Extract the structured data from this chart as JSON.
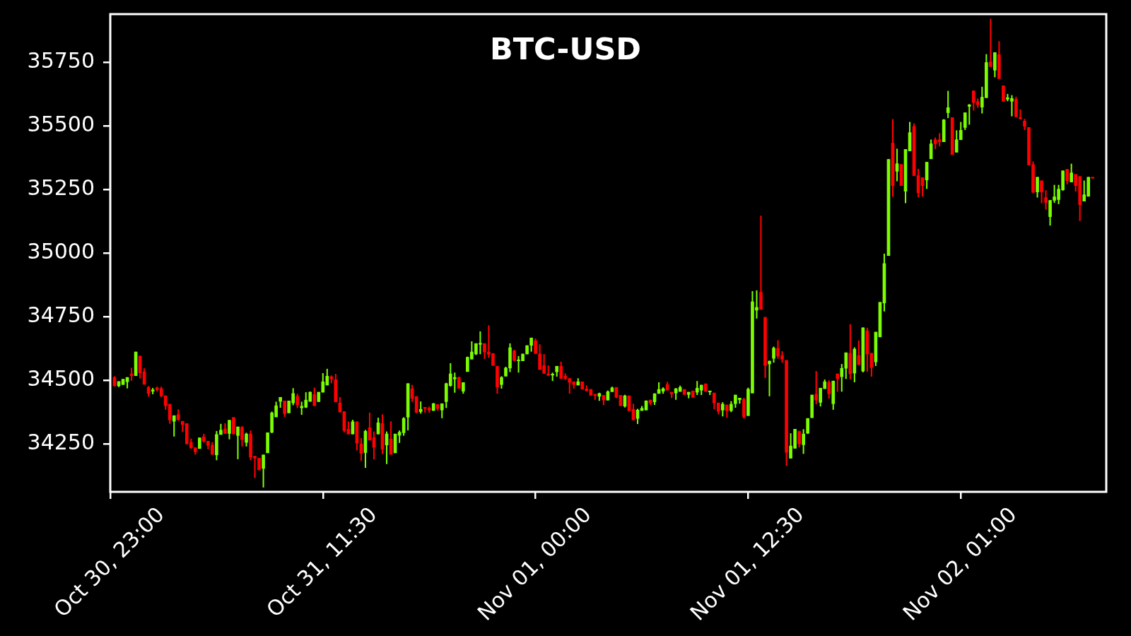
{
  "chart_data": {
    "type": "candlestick",
    "title": "BTC-USD",
    "x": [
      "--10-30T23:15",
      "--10-30T23:30",
      "--10-30T23:45",
      "--10-31T00:00",
      "--10-31T00:15",
      "--10-31T00:30",
      "--10-31T00:45",
      "--10-31T01:00",
      "--10-31T01:15",
      "--10-31T01:30",
      "--10-31T01:45",
      "--10-31T02:00",
      "--10-31T02:15",
      "--10-31T02:30",
      "--10-31T02:45",
      "--10-31T03:00",
      "--10-31T03:15",
      "--10-31T03:30",
      "--10-31T03:45",
      "--10-31T04:00",
      "--10-31T04:15",
      "--10-31T04:30",
      "--10-31T04:45",
      "--10-31T05:00",
      "--10-31T05:15",
      "--10-31T05:30",
      "--10-31T05:45",
      "--10-31T06:00",
      "--10-31T06:15",
      "--10-31T06:30",
      "--10-31T06:45",
      "--10-31T07:00",
      "--10-31T07:15",
      "--10-31T07:30",
      "--10-31T07:45",
      "--10-31T08:00",
      "--10-31T08:15",
      "--10-31T08:30",
      "--10-31T08:45",
      "--10-31T09:00",
      "--10-31T09:15",
      "--10-31T09:30",
      "--10-31T09:45",
      "--10-31T10:00",
      "--10-31T10:15",
      "--10-31T10:30",
      "--10-31T10:45",
      "--10-31T11:00",
      "--10-31T11:15",
      "--10-31T11:30",
      "--10-31T11:45",
      "--10-31T12:00",
      "--10-31T12:15",
      "--10-31T12:30",
      "--10-31T12:45",
      "--10-31T13:00",
      "--10-31T13:15",
      "--10-31T13:30",
      "--10-31T13:45",
      "--10-31T14:00",
      "--10-31T14:15",
      "--10-31T14:30",
      "--10-31T14:45",
      "--10-31T15:00",
      "--10-31T15:15",
      "--10-31T15:30",
      "--10-31T15:45",
      "--10-31T16:00",
      "--10-31T16:15",
      "--10-31T16:30",
      "--10-31T16:45",
      "--10-31T17:00",
      "--10-31T17:15",
      "--10-31T17:30",
      "--10-31T17:45",
      "--10-31T18:00",
      "--10-31T18:15",
      "--10-31T18:30",
      "--10-31T18:45",
      "--10-31T19:00",
      "--10-31T19:15",
      "--10-31T19:30",
      "--10-31T19:45",
      "--10-31T20:00",
      "--10-31T20:15",
      "--10-31T20:30",
      "--10-31T20:45",
      "--10-31T21:00",
      "--10-31T21:15",
      "--10-31T21:30",
      "--10-31T21:45",
      "--10-31T22:00",
      "--10-31T22:15",
      "--10-31T22:30",
      "--10-31T22:45",
      "--10-31T23:00",
      "--10-31T23:15",
      "--10-31T23:30",
      "--10-31T23:45",
      "--11-01T00:00",
      "--11-01T00:15",
      "--11-01T00:30",
      "--11-01T00:45",
      "--11-01T01:00",
      "--11-01T01:15",
      "--11-01T01:30",
      "--11-01T01:45",
      "--11-01T02:00",
      "--11-01T02:15",
      "--11-01T02:30",
      "--11-01T02:45",
      "--11-01T03:00",
      "--11-01T03:15",
      "--11-01T03:30",
      "--11-01T03:45",
      "--11-01T04:00",
      "--11-01T04:15",
      "--11-01T04:30",
      "--11-01T04:45",
      "--11-01T05:00",
      "--11-01T05:15",
      "--11-01T05:30",
      "--11-01T05:45",
      "--11-01T06:00",
      "--11-01T06:15",
      "--11-01T06:30",
      "--11-01T06:45",
      "--11-01T07:00",
      "--11-01T07:15",
      "--11-01T07:30",
      "--11-01T07:45",
      "--11-01T08:00",
      "--11-01T08:15",
      "--11-01T08:30",
      "--11-01T08:45",
      "--11-01T09:00",
      "--11-01T09:15",
      "--11-01T09:30",
      "--11-01T09:45",
      "--11-01T10:00",
      "--11-01T10:15",
      "--11-01T10:30",
      "--11-01T10:45",
      "--11-01T11:00",
      "--11-01T11:15",
      "--11-01T11:30",
      "--11-01T11:45",
      "--11-01T12:00",
      "--11-01T12:15",
      "--11-01T12:30",
      "--11-01T12:45",
      "--11-01T13:00",
      "--11-01T13:15",
      "--11-01T13:30",
      "--11-01T13:45",
      "--11-01T14:00",
      "--11-01T14:15",
      "--11-01T14:30",
      "--11-01T14:45",
      "--11-01T15:00",
      "--11-01T15:15",
      "--11-01T15:30",
      "--11-01T15:45",
      "--11-01T16:00",
      "--11-01T16:15",
      "--11-01T16:30",
      "--11-01T16:45",
      "--11-01T17:00",
      "--11-01T17:15",
      "--11-01T17:30",
      "--11-01T17:45",
      "--11-01T18:00",
      "--11-01T18:15",
      "--11-01T18:30",
      "--11-01T18:45",
      "--11-01T19:00",
      "--11-01T19:15",
      "--11-01T19:30",
      "--11-01T19:45",
      "--11-01T20:00",
      "--11-01T20:15",
      "--11-01T20:30",
      "--11-01T20:45",
      "--11-01T21:00",
      "--11-01T21:15",
      "--11-01T21:30",
      "--11-01T21:45",
      "--11-01T22:00",
      "--11-01T22:15",
      "--11-01T22:30",
      "--11-01T22:45",
      "--11-01T23:00",
      "--11-01T23:15",
      "--11-01T23:30",
      "--11-01T23:45",
      "--11-02T00:00",
      "--11-02T00:15",
      "--11-02T00:30",
      "--11-02T00:45",
      "--11-02T01:00",
      "--11-02T01:15",
      "--11-02T01:30",
      "--11-02T01:45",
      "--11-02T02:00",
      "--11-02T02:15",
      "--11-02T02:30",
      "--11-02T02:45",
      "--11-02T03:00",
      "--11-02T03:15",
      "--11-02T03:30",
      "--11-02T03:45",
      "--11-02T04:00",
      "--11-02T04:15",
      "--11-02T04:30",
      "--11-02T04:45",
      "--11-02T05:00",
      "--11-02T05:15",
      "--11-02T05:30",
      "--11-02T05:45",
      "--11-02T06:00",
      "--11-02T06:15",
      "--11-02T06:30",
      "--11-02T06:45",
      "--11-02T07:00",
      "--11-02T07:15",
      "--11-02T07:30",
      "--11-02T07:45",
      "--11-02T08:00",
      "--11-02T08:15",
      "--11-02T08:30",
      "--11-02T08:45"
    ],
    "ohlc": [
      [
        34512,
        34516,
        34478,
        34479
      ],
      [
        34479,
        34496,
        34475,
        34496
      ],
      [
        34484,
        34505,
        34484,
        34505
      ],
      [
        34495,
        34512,
        34470,
        34512
      ],
      [
        34526,
        34549,
        34500,
        34519
      ],
      [
        34519,
        34612,
        34519,
        34612
      ],
      [
        34596,
        34596,
        34509,
        34530
      ],
      [
        34534,
        34547,
        34485,
        34485
      ],
      [
        34473,
        34477,
        34438,
        34449
      ],
      [
        34458,
        34470,
        34447,
        34463
      ],
      [
        34471,
        34475,
        34458,
        34464
      ],
      [
        34468,
        34475,
        34435,
        34440
      ],
      [
        34440,
        34440,
        34386,
        34401
      ],
      [
        34407,
        34407,
        34331,
        34345
      ],
      [
        34340,
        34362,
        34281,
        34362
      ],
      [
        34366,
        34386,
        34342,
        34347
      ],
      [
        34340,
        34340,
        34299,
        34327
      ],
      [
        34331,
        34331,
        34251,
        34251
      ],
      [
        34257,
        34271,
        34233,
        34236
      ],
      [
        34236,
        34236,
        34210,
        34220
      ],
      [
        34233,
        34275,
        34233,
        34275
      ],
      [
        34279,
        34290,
        34257,
        34262
      ],
      [
        34262,
        34262,
        34231,
        34246
      ],
      [
        34246,
        34257,
        34210,
        34210
      ],
      [
        34208,
        34301,
        34188,
        34288
      ],
      [
        34288,
        34329,
        34288,
        34305
      ],
      [
        34310,
        34331,
        34292,
        34292
      ],
      [
        34292,
        34344,
        34270,
        34344
      ],
      [
        34355,
        34355,
        34290,
        34290
      ],
      [
        34284,
        34318,
        34192,
        34318
      ],
      [
        34316,
        34320,
        34242,
        34268
      ],
      [
        34257,
        34294,
        34242,
        34290
      ],
      [
        34290,
        34303,
        34188,
        34199
      ],
      [
        34203,
        34203,
        34118,
        34195
      ],
      [
        34195,
        34195,
        34149,
        34149
      ],
      [
        34155,
        34208,
        34081,
        34208
      ],
      [
        34216,
        34295,
        34216,
        34295
      ],
      [
        34297,
        34377,
        34294,
        34373
      ],
      [
        34357,
        34416,
        34357,
        34401
      ],
      [
        34418,
        34434,
        34394,
        34434
      ],
      [
        34420,
        34420,
        34358,
        34370
      ],
      [
        34373,
        34420,
        34373,
        34420
      ],
      [
        34412,
        34469,
        34404,
        34449
      ],
      [
        34438,
        34447,
        34393,
        34404
      ],
      [
        34393,
        34416,
        34366,
        34399
      ],
      [
        34395,
        34453,
        34393,
        34423
      ],
      [
        34418,
        34456,
        34418,
        34454
      ],
      [
        34445,
        34471,
        34401,
        34401
      ],
      [
        34417,
        34454,
        34417,
        34454
      ],
      [
        34454,
        34528,
        34454,
        34495
      ],
      [
        34482,
        34545,
        34482,
        34517
      ],
      [
        34515,
        34519,
        34490,
        34506
      ],
      [
        34503,
        34525,
        34416,
        34416
      ],
      [
        34412,
        34434,
        34375,
        34377
      ],
      [
        34378,
        34378,
        34297,
        34304
      ],
      [
        34309,
        34338,
        34290,
        34290
      ],
      [
        34290,
        34345,
        34290,
        34338
      ],
      [
        34338,
        34338,
        34227,
        34254
      ],
      [
        34251,
        34273,
        34186,
        34214
      ],
      [
        34217,
        34305,
        34158,
        34301
      ],
      [
        34315,
        34373,
        34266,
        34266
      ],
      [
        34276,
        34299,
        34191,
        34238
      ],
      [
        34290,
        34353,
        34290,
        34334
      ],
      [
        34331,
        34366,
        34212,
        34231
      ],
      [
        34247,
        34299,
        34173,
        34290
      ],
      [
        34270,
        34339,
        34210,
        34210
      ],
      [
        34216,
        34290,
        34216,
        34290
      ],
      [
        34285,
        34303,
        34256,
        34297
      ],
      [
        34295,
        34355,
        34284,
        34351
      ],
      [
        34356,
        34488,
        34305,
        34488
      ],
      [
        34467,
        34482,
        34417,
        34430
      ],
      [
        34437,
        34437,
        34373,
        34375
      ],
      [
        34378,
        34417,
        34371,
        34387
      ],
      [
        34395,
        34395,
        34375,
        34390
      ],
      [
        34391,
        34397,
        34375,
        34384
      ],
      [
        34382,
        34411,
        34382,
        34409
      ],
      [
        34406,
        34406,
        34382,
        34390
      ],
      [
        34384,
        34409,
        34353,
        34409
      ],
      [
        34417,
        34490,
        34393,
        34488
      ],
      [
        34480,
        34567,
        34477,
        34526
      ],
      [
        34506,
        34530,
        34453,
        34512
      ],
      [
        34512,
        34514,
        34469,
        34469
      ],
      [
        34458,
        34492,
        34449,
        34492
      ],
      [
        34535,
        34593,
        34535,
        34591
      ],
      [
        34584,
        34653,
        34584,
        34612
      ],
      [
        34604,
        34645,
        34601,
        34645
      ],
      [
        34642,
        34692,
        34604,
        34646
      ],
      [
        34645,
        34645,
        34586,
        34612
      ],
      [
        34612,
        34716,
        34590,
        34603
      ],
      [
        34606,
        34606,
        34559,
        34559
      ],
      [
        34556,
        34556,
        34449,
        34474
      ],
      [
        34484,
        34516,
        34469,
        34512
      ],
      [
        34517,
        34553,
        34517,
        34549
      ],
      [
        34549,
        34645,
        34534,
        34629
      ],
      [
        34616,
        34620,
        34577,
        34579
      ],
      [
        34577,
        34595,
        34532,
        34580
      ],
      [
        34577,
        34604,
        34577,
        34604
      ],
      [
        34604,
        34637,
        34604,
        34637
      ],
      [
        34638,
        34667,
        34614,
        34667
      ],
      [
        34656,
        34664,
        34606,
        34606
      ],
      [
        34604,
        34641,
        34543,
        34543
      ],
      [
        34559,
        34603,
        34528,
        34528
      ],
      [
        34526,
        34558,
        34520,
        34520
      ],
      [
        34521,
        34530,
        34499,
        34525
      ],
      [
        34534,
        34556,
        34516,
        34556
      ],
      [
        34556,
        34573,
        34508,
        34508
      ],
      [
        34517,
        34527,
        34503,
        34508
      ],
      [
        34508,
        34508,
        34449,
        34493
      ],
      [
        34495,
        34495,
        34469,
        34484
      ],
      [
        34482,
        34508,
        34482,
        34495
      ],
      [
        34495,
        34495,
        34466,
        34466
      ],
      [
        34467,
        34480,
        34458,
        34460
      ],
      [
        34465,
        34465,
        34442,
        34442
      ],
      [
        34446,
        34446,
        34425,
        34441
      ],
      [
        34438,
        34451,
        34421,
        34449
      ],
      [
        34442,
        34442,
        34404,
        34423
      ],
      [
        34423,
        34460,
        34423,
        34456
      ],
      [
        34456,
        34475,
        34456,
        34471
      ],
      [
        34473,
        34473,
        34432,
        34434
      ],
      [
        34442,
        34442,
        34401,
        34401
      ],
      [
        34399,
        34443,
        34395,
        34440
      ],
      [
        34440,
        34440,
        34381,
        34381
      ],
      [
        34387,
        34408,
        34345,
        34345
      ],
      [
        34351,
        34388,
        34330,
        34384
      ],
      [
        34382,
        34399,
        34382,
        34391
      ],
      [
        34384,
        34421,
        34384,
        34420
      ],
      [
        34423,
        34424,
        34405,
        34412
      ],
      [
        34416,
        34449,
        34405,
        34448
      ],
      [
        34449,
        34492,
        34449,
        34465
      ],
      [
        34458,
        34472,
        34449,
        34468
      ],
      [
        34484,
        34494,
        34462,
        34462
      ],
      [
        34454,
        34454,
        34432,
        34447
      ],
      [
        34451,
        34469,
        34425,
        34468
      ],
      [
        34457,
        34479,
        34457,
        34473
      ],
      [
        34465,
        34465,
        34445,
        34445
      ],
      [
        34445,
        34454,
        34431,
        34454
      ],
      [
        34459,
        34459,
        34434,
        34434
      ],
      [
        34454,
        34497,
        34444,
        34470
      ],
      [
        34462,
        34482,
        34444,
        34482
      ],
      [
        34487,
        34487,
        34457,
        34457
      ],
      [
        34455,
        34459,
        34444,
        34458
      ],
      [
        34451,
        34451,
        34388,
        34412
      ],
      [
        34412,
        34412,
        34368,
        34379
      ],
      [
        34384,
        34414,
        34360,
        34407
      ],
      [
        34404,
        34404,
        34355,
        34381
      ],
      [
        34382,
        34418,
        34377,
        34407
      ],
      [
        34409,
        34443,
        34394,
        34443
      ],
      [
        34425,
        34431,
        34410,
        34431
      ],
      [
        34426,
        34431,
        34351,
        34357
      ],
      [
        34362,
        34471,
        34362,
        34466
      ],
      [
        34451,
        34850,
        34451,
        34809
      ],
      [
        34776,
        34853,
        34744,
        34787
      ],
      [
        34846,
        35146,
        34779,
        34779
      ],
      [
        34748,
        34748,
        34511,
        34559
      ],
      [
        34565,
        34577,
        34439,
        34576
      ],
      [
        34587,
        34632,
        34571,
        34627
      ],
      [
        34626,
        34657,
        34586,
        34596
      ],
      [
        34598,
        34614,
        34571,
        34584
      ],
      [
        34579,
        34579,
        34166,
        34218
      ],
      [
        34195,
        34292,
        34195,
        34243
      ],
      [
        34234,
        34309,
        34234,
        34309
      ],
      [
        34301,
        34301,
        34238,
        34251
      ],
      [
        34248,
        34308,
        34213,
        34290
      ],
      [
        34293,
        34351,
        34291,
        34351
      ],
      [
        34354,
        34443,
        34354,
        34443
      ],
      [
        34446,
        34536,
        34408,
        34423
      ],
      [
        34414,
        34470,
        34399,
        34470
      ],
      [
        34468,
        34503,
        34468,
        34495
      ],
      [
        34493,
        34500,
        34430,
        34448
      ],
      [
        34409,
        34498,
        34386,
        34498
      ],
      [
        34526,
        34526,
        34457,
        34507
      ],
      [
        34515,
        34564,
        34457,
        34548
      ],
      [
        34548,
        34609,
        34507,
        34609
      ],
      [
        34607,
        34720,
        34505,
        34526
      ],
      [
        34529,
        34629,
        34494,
        34623
      ],
      [
        34598,
        34656,
        34562,
        34562
      ],
      [
        34537,
        34707,
        34533,
        34707
      ],
      [
        34695,
        34706,
        34535,
        34604
      ],
      [
        34607,
        34607,
        34516,
        34551
      ],
      [
        34573,
        34690,
        34558,
        34690
      ],
      [
        34671,
        34807,
        34671,
        34807
      ],
      [
        34804,
        34997,
        34772,
        34959
      ],
      [
        34990,
        35368,
        34990,
        35368
      ],
      [
        35432,
        35525,
        35222,
        35265
      ],
      [
        35321,
        35409,
        35283,
        35351
      ],
      [
        35348,
        35348,
        35265,
        35265
      ],
      [
        35243,
        35407,
        35197,
        35407
      ],
      [
        35401,
        35514,
        35401,
        35473
      ],
      [
        35497,
        35508,
        35304,
        35304
      ],
      [
        35304,
        35330,
        35220,
        35237
      ],
      [
        35296,
        35296,
        35223,
        35265
      ],
      [
        35287,
        35357,
        35253,
        35357
      ],
      [
        35370,
        35445,
        35370,
        35429
      ],
      [
        35445,
        35453,
        35409,
        35429
      ],
      [
        35445,
        35470,
        35420,
        35437
      ],
      [
        35437,
        35525,
        35437,
        35523
      ],
      [
        35551,
        35636,
        35531,
        35571
      ],
      [
        35532,
        35532,
        35387,
        35387
      ],
      [
        35396,
        35481,
        35396,
        35445
      ],
      [
        35445,
        35514,
        35445,
        35482
      ],
      [
        35493,
        35551,
        35484,
        35551
      ],
      [
        35576,
        35584,
        35505,
        35582
      ],
      [
        35637,
        35637,
        35561,
        35591
      ],
      [
        35595,
        35606,
        35571,
        35582
      ],
      [
        35573,
        35652,
        35549,
        35612
      ],
      [
        35610,
        35780,
        35610,
        35748
      ],
      [
        35751,
        35919,
        35732,
        35732
      ],
      [
        35718,
        35787,
        35691,
        35787
      ],
      [
        35779,
        35831,
        35685,
        35685
      ],
      [
        35657,
        35657,
        35596,
        35596
      ],
      [
        35604,
        35624,
        35597,
        35610
      ],
      [
        35596,
        35619,
        35538,
        35607
      ],
      [
        35604,
        35613,
        35535,
        35535
      ],
      [
        35532,
        35563,
        35527,
        35527
      ],
      [
        35518,
        35526,
        35484,
        35498
      ],
      [
        35493,
        35493,
        35346,
        35346
      ],
      [
        35348,
        35359,
        35236,
        35239
      ],
      [
        35240,
        35298,
        35219,
        35298
      ],
      [
        35284,
        35284,
        35197,
        35240
      ],
      [
        35218,
        35246,
        35172,
        35199
      ],
      [
        35143,
        35207,
        35109,
        35207
      ],
      [
        35207,
        35267,
        35198,
        35221
      ],
      [
        35210,
        35267,
        35193,
        35251
      ],
      [
        35248,
        35323,
        35246,
        35323
      ],
      [
        35329,
        35329,
        35271,
        35284
      ],
      [
        35279,
        35350,
        35279,
        35315
      ],
      [
        35309,
        35309,
        35243,
        35265
      ],
      [
        35301,
        35301,
        35127,
        35190
      ],
      [
        35204,
        35284,
        35204,
        35229
      ],
      [
        35223,
        35298,
        35223,
        35298
      ],
      [
        35296,
        35296,
        35294,
        35294
      ]
    ],
    "colors": [
      "#ff0000",
      "#7cfc00",
      "#7cfc00",
      "#7cfc00",
      "#ff0000",
      "#7cfc00",
      "#ff0000",
      "#ff0000",
      "#ff0000",
      "#7cfc00",
      "#ff0000",
      "#ff0000",
      "#ff0000",
      "#ff0000",
      "#7cfc00",
      "#ff0000",
      "#ff0000",
      "#ff0000",
      "#ff0000",
      "#ff0000",
      "#7cfc00",
      "#ff0000",
      "#ff0000",
      "#ff0000",
      "#7cfc00",
      "#7cfc00",
      "#ff0000",
      "#7cfc00",
      "#ff0000",
      "#7cfc00",
      "#ff0000",
      "#7cfc00",
      "#ff0000",
      "#ff0000",
      "#ff0000",
      "#7cfc00",
      "#7cfc00",
      "#7cfc00",
      "#7cfc00",
      "#7cfc00",
      "#ff0000",
      "#7cfc00",
      "#7cfc00",
      "#ff0000",
      "#7cfc00",
      "#7cfc00",
      "#7cfc00",
      "#ff0000",
      "#7cfc00",
      "#7cfc00",
      "#7cfc00",
      "#ff0000",
      "#ff0000",
      "#ff0000",
      "#ff0000",
      "#ff0000",
      "#7cfc00",
      "#ff0000",
      "#ff0000",
      "#7cfc00",
      "#ff0000",
      "#ff0000",
      "#7cfc00",
      "#ff0000",
      "#7cfc00",
      "#ff0000",
      "#7cfc00",
      "#7cfc00",
      "#7cfc00",
      "#7cfc00",
      "#ff0000",
      "#ff0000",
      "#7cfc00",
      "#ff0000",
      "#ff0000",
      "#7cfc00",
      "#ff0000",
      "#7cfc00",
      "#7cfc00",
      "#7cfc00",
      "#7cfc00",
      "#ff0000",
      "#7cfc00",
      "#7cfc00",
      "#7cfc00",
      "#7cfc00",
      "#7cfc00",
      "#ff0000",
      "#ff0000",
      "#ff0000",
      "#ff0000",
      "#7cfc00",
      "#7cfc00",
      "#7cfc00",
      "#ff0000",
      "#7cfc00",
      "#7cfc00",
      "#7cfc00",
      "#7cfc00",
      "#ff0000",
      "#ff0000",
      "#ff0000",
      "#ff0000",
      "#7cfc00",
      "#7cfc00",
      "#ff0000",
      "#ff0000",
      "#ff0000",
      "#ff0000",
      "#7cfc00",
      "#ff0000",
      "#ff0000",
      "#ff0000",
      "#ff0000",
      "#7cfc00",
      "#ff0000",
      "#7cfc00",
      "#7cfc00",
      "#ff0000",
      "#ff0000",
      "#7cfc00",
      "#ff0000",
      "#ff0000",
      "#7cfc00",
      "#7cfc00",
      "#7cfc00",
      "#ff0000",
      "#7cfc00",
      "#7cfc00",
      "#7cfc00",
      "#ff0000",
      "#ff0000",
      "#7cfc00",
      "#7cfc00",
      "#ff0000",
      "#7cfc00",
      "#ff0000",
      "#7cfc00",
      "#7cfc00",
      "#ff0000",
      "#7cfc00",
      "#ff0000",
      "#ff0000",
      "#7cfc00",
      "#ff0000",
      "#7cfc00",
      "#7cfc00",
      "#7cfc00",
      "#ff0000",
      "#7cfc00",
      "#7cfc00",
      "#7cfc00",
      "#ff0000",
      "#ff0000",
      "#7cfc00",
      "#7cfc00",
      "#ff0000",
      "#ff0000",
      "#ff0000",
      "#7cfc00",
      "#7cfc00",
      "#ff0000",
      "#7cfc00",
      "#7cfc00",
      "#7cfc00",
      "#ff0000",
      "#7cfc00",
      "#7cfc00",
      "#ff0000",
      "#7cfc00",
      "#ff0000",
      "#7cfc00",
      "#7cfc00",
      "#ff0000",
      "#7cfc00",
      "#ff0000",
      "#7cfc00",
      "#ff0000",
      "#ff0000",
      "#7cfc00",
      "#7cfc00",
      "#7cfc00",
      "#7cfc00",
      "#ff0000",
      "#7cfc00",
      "#ff0000",
      "#7cfc00",
      "#7cfc00",
      "#ff0000",
      "#ff0000",
      "#ff0000",
      "#7cfc00",
      "#7cfc00",
      "#ff0000",
      "#ff0000",
      "#7cfc00",
      "#7cfc00",
      "#ff0000",
      "#7cfc00",
      "#7cfc00",
      "#7cfc00",
      "#7cfc00",
      "#ff0000",
      "#ff0000",
      "#7cfc00",
      "#7cfc00",
      "#ff0000",
      "#7cfc00",
      "#ff0000",
      "#ff0000",
      "#7cfc00",
      "#7cfc00",
      "#ff0000",
      "#ff0000",
      "#ff0000",
      "#ff0000",
      "#ff0000",
      "#7cfc00",
      "#ff0000",
      "#ff0000",
      "#7cfc00",
      "#7cfc00",
      "#7cfc00",
      "#7cfc00",
      "#ff0000",
      "#7cfc00",
      "#ff0000",
      "#ff0000",
      "#7cfc00",
      "#7cfc00",
      "#ff0000"
    ],
    "xlim": [
      "--10-30T23:00",
      "--11-02T09:33"
    ],
    "xticks": [
      {
        "value": "--10-30T23:00",
        "label": "Oct 30, 23:00"
      },
      {
        "value": "--10-31T11:30",
        "label": "Oct 31, 11:30"
      },
      {
        "value": "--11-01T00:00",
        "label": "Nov 01, 00:00"
      },
      {
        "value": "--11-01T12:30",
        "label": "Nov 01, 12:30"
      },
      {
        "value": "--11-02T01:00",
        "label": "Nov 02, 01:00"
      }
    ],
    "ylim": [
      34063,
      35938
    ],
    "yticks": [
      34250,
      34500,
      34750,
      35000,
      35250,
      35500,
      35750
    ]
  }
}
